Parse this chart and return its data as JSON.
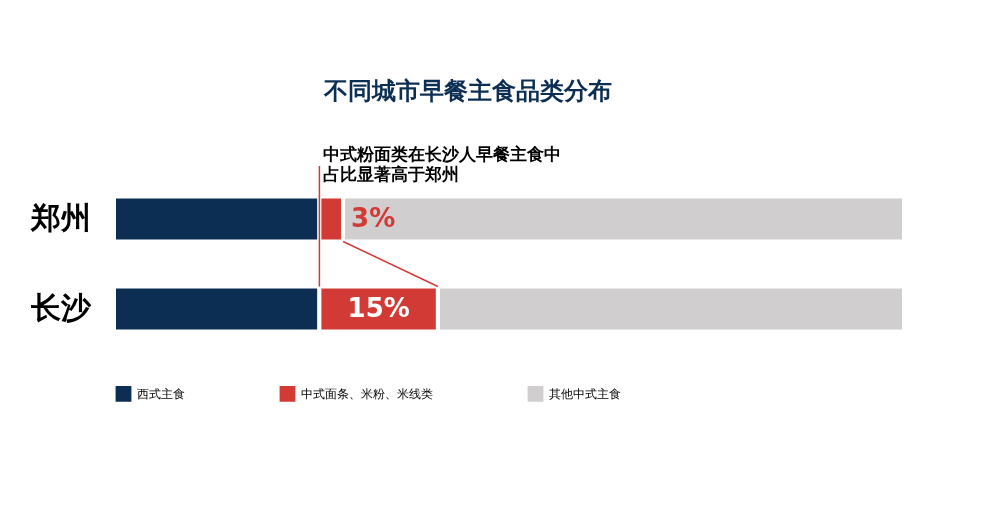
{
  "chart_data": {
    "type": "bar",
    "orientation": "horizontal",
    "stacked": true,
    "title": "不同城市早餐主食品类分布",
    "categories": [
      "郑州",
      "长沙"
    ],
    "series": [
      {
        "name": "西式主食",
        "color": "#0b2e52",
        "values": [
          26,
          26
        ]
      },
      {
        "name": "中式面条、米粉、米线类",
        "color": "#d23a36",
        "values": [
          3,
          15
        ],
        "value_labels": [
          "3%",
          "15%"
        ]
      },
      {
        "name": "其他中式主食",
        "color": "#d0cecf",
        "values": [
          71,
          59
        ]
      }
    ],
    "annotations": [
      "中式粉面类在长沙人早餐主食中占比显著高于郑州"
    ],
    "ref_lines": [
      {
        "axis": "x",
        "value": 26,
        "color": "#d23a36"
      }
    ],
    "tick_labels": "y",
    "legend": "bottom"
  }
}
